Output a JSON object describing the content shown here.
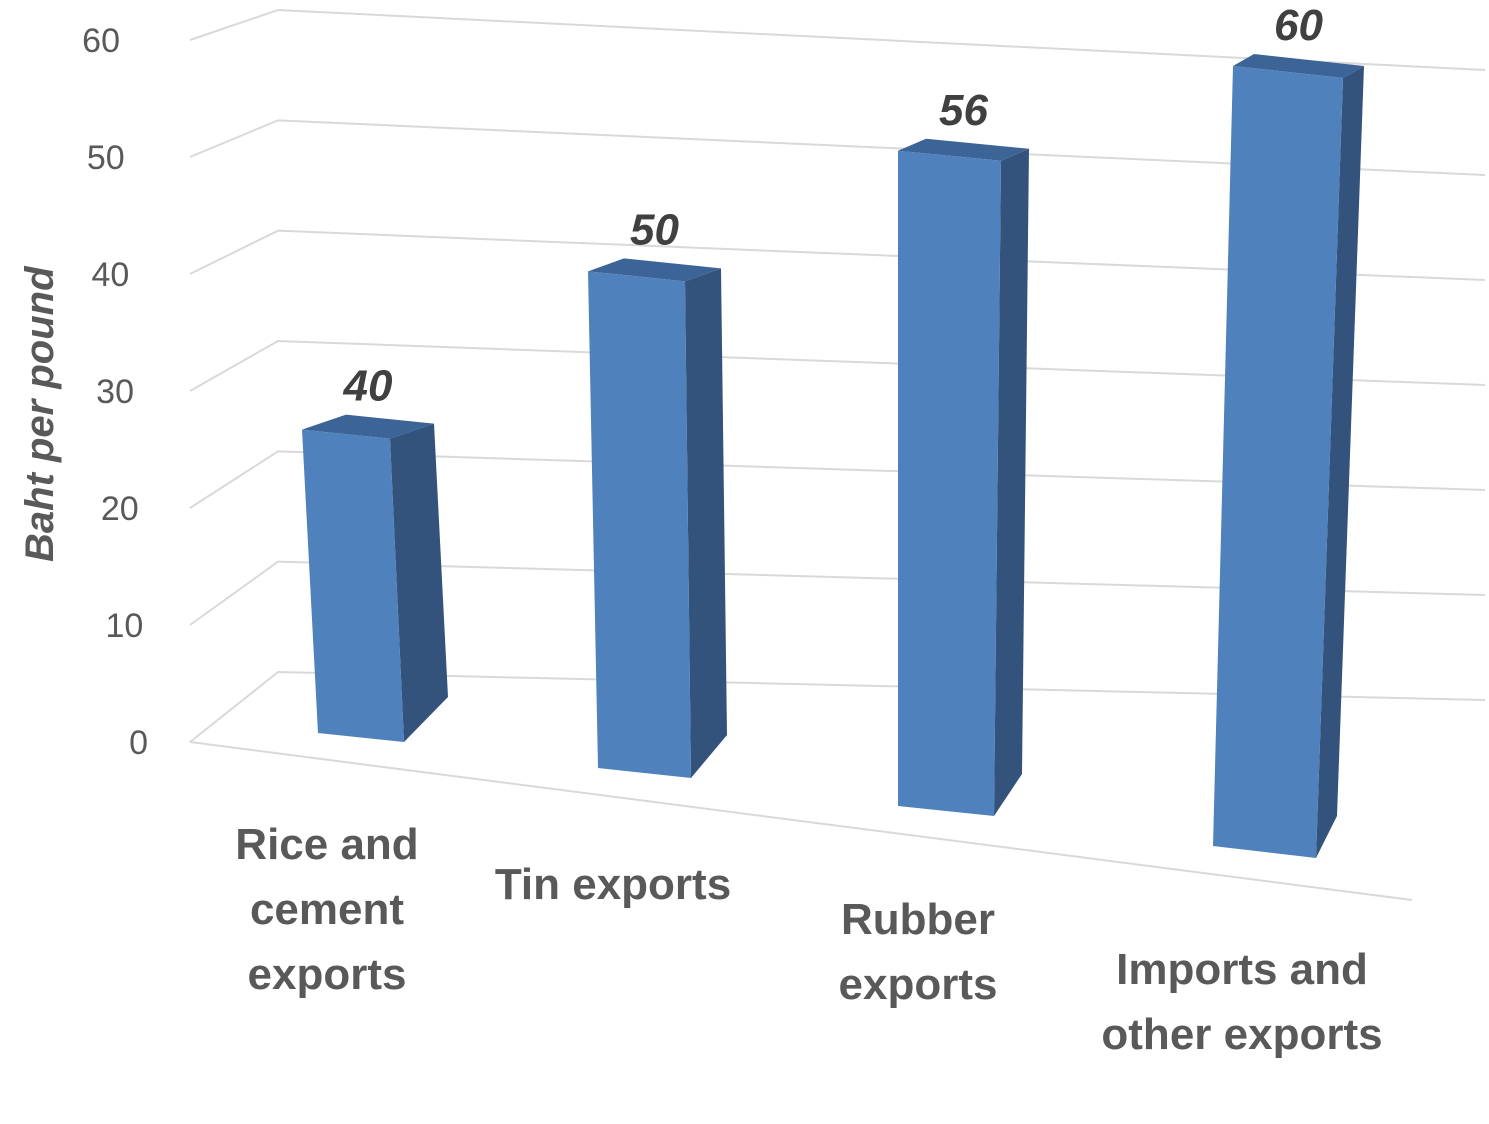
{
  "chart_data": {
    "type": "bar",
    "style": "3d-column",
    "categories": [
      "Rice and cement exports",
      "Tin exports",
      "Rubber exports",
      "Imports and other exports"
    ],
    "values": [
      40,
      50,
      56,
      60
    ],
    "data_labels": [
      "40",
      "50",
      "56",
      "60"
    ],
    "ylabel": "Baht per pound",
    "xlabel": "",
    "title": "",
    "ylim": [
      0,
      60
    ],
    "yticks": [
      0,
      10,
      20,
      30,
      40,
      50,
      60
    ],
    "ytick_labels": [
      "0",
      "10",
      "20",
      "30",
      "40",
      "50",
      "60"
    ],
    "grid": true,
    "legend": false,
    "colors": {
      "bar_front": "#4F81BD",
      "bar_side": "#34537C",
      "bar_top": "#3D6496",
      "gridline": "#D9D9D9",
      "text": "#595959",
      "data_label": "#404040"
    }
  }
}
